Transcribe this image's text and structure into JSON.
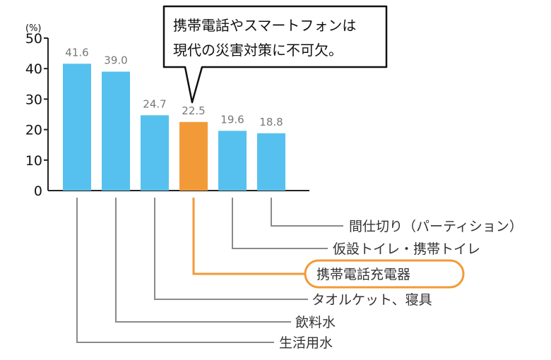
{
  "colors": {
    "bar": "#56c1ee",
    "highlight": "#f29a38",
    "leader": "#8a8a8a",
    "axis": "#222222",
    "text": "#333333",
    "value_label": "#777777"
  },
  "axis": {
    "unit": "(%)",
    "ticks": [
      "50",
      "40",
      "30",
      "20",
      "10",
      "0"
    ]
  },
  "callout": {
    "line1": "携帯電話やスマートフォンは",
    "line2": "現代の災害対策に不可欠。"
  },
  "chart_data": {
    "type": "bar",
    "ylabel": "(%)",
    "ylim": [
      0,
      50
    ],
    "yticks": [
      0,
      10,
      20,
      30,
      40,
      50
    ],
    "grid": false,
    "categories": [
      "生活用水",
      "飲料水",
      "タオルケット、寝具",
      "携帯電話充電器",
      "仮設トイレ・携帯トイレ",
      "間仕切り(パーティション)"
    ],
    "values": [
      41.6,
      39.0,
      24.7,
      22.5,
      19.6,
      18.8
    ],
    "value_labels": [
      "41.6",
      "39.0",
      "24.7",
      "22.5",
      "19.6",
      "18.8"
    ],
    "category_labels": [
      "生活用水",
      "飲料水",
      "タオルケット、寝具",
      "携帯電話充電器",
      "仮設トイレ・携帯トイレ",
      "間仕切り（パーティション）"
    ],
    "highlight_index": 3
  }
}
